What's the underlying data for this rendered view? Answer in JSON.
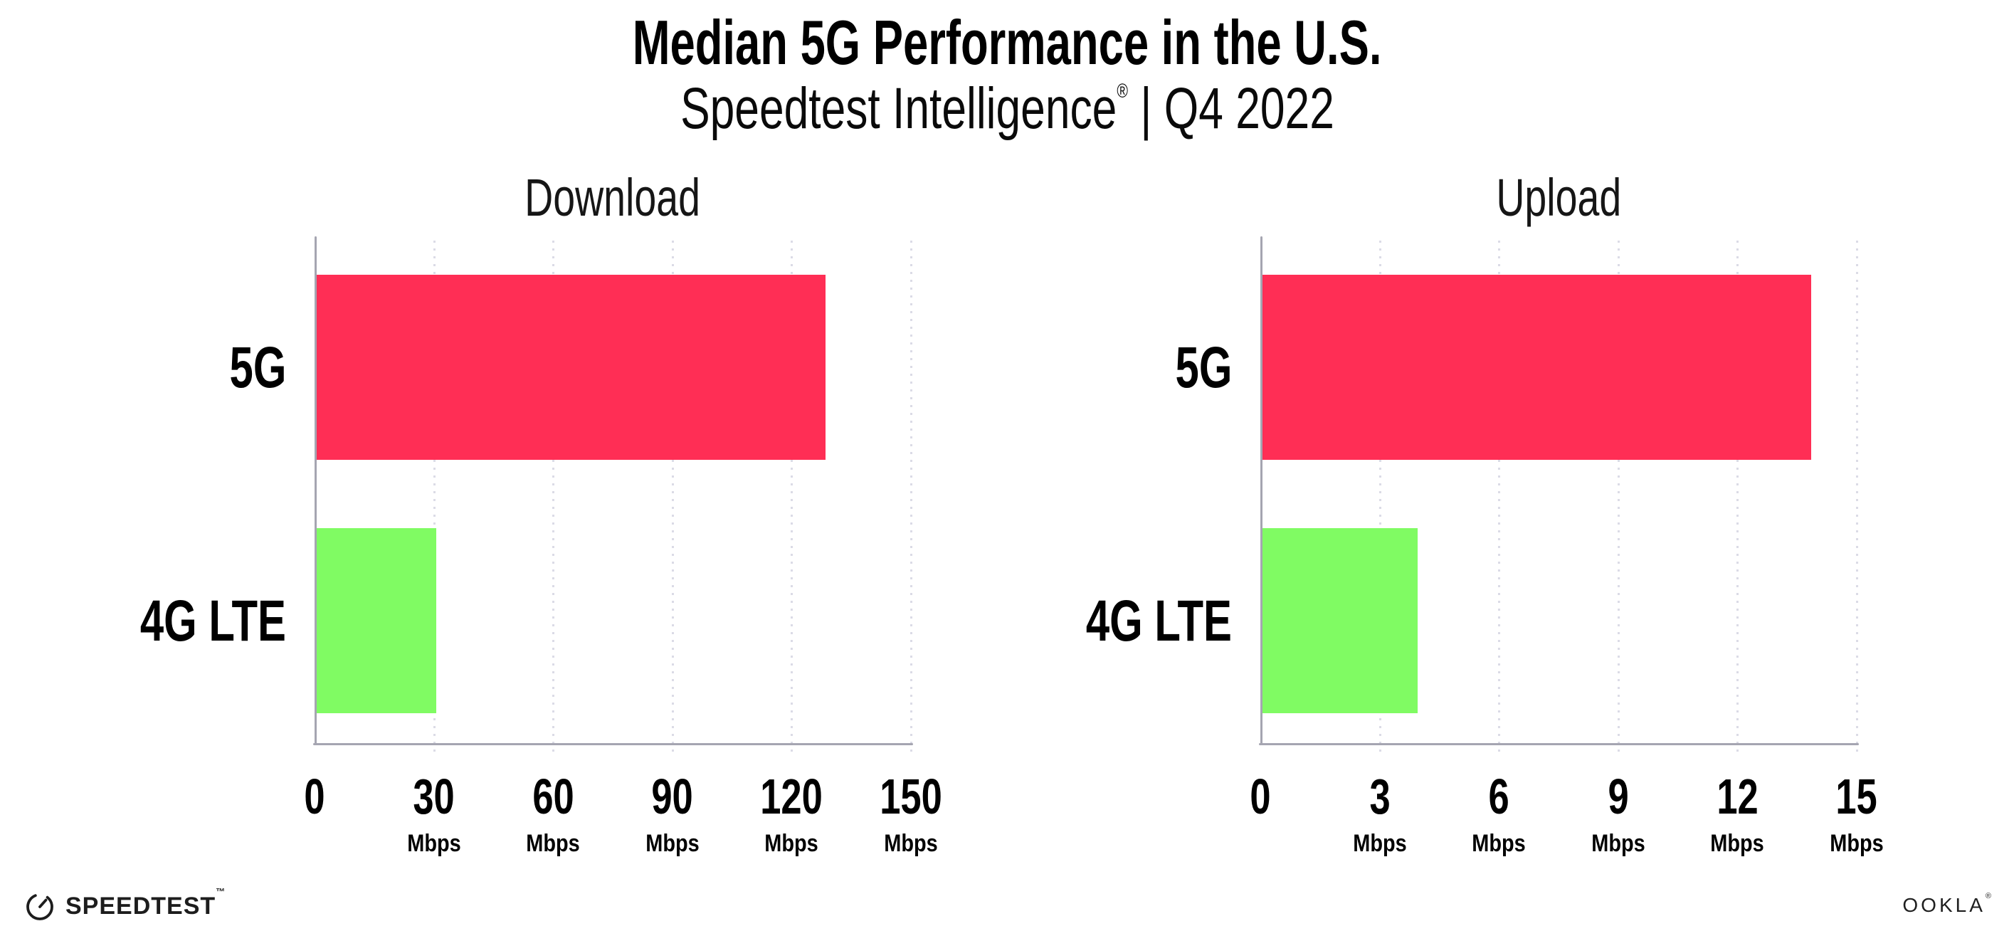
{
  "header": {
    "title": "Median 5G Performance in the U.S.",
    "subtitle_brand": "Speedtest Intelligence",
    "subtitle_reg": "®",
    "subtitle_rest": " | Q4 2022"
  },
  "charts": [
    {
      "title": "Download",
      "categories": [
        "5G",
        "4G LTE"
      ],
      "ticks": [
        {
          "label": "0",
          "unit": ""
        },
        {
          "label": "30",
          "unit": "Mbps"
        },
        {
          "label": "60",
          "unit": "Mbps"
        },
        {
          "label": "90",
          "unit": "Mbps"
        },
        {
          "label": "120",
          "unit": "Mbps"
        },
        {
          "label": "150",
          "unit": "Mbps"
        }
      ]
    },
    {
      "title": "Upload",
      "categories": [
        "5G",
        "4G LTE"
      ],
      "ticks": [
        {
          "label": "0",
          "unit": ""
        },
        {
          "label": "3",
          "unit": "Mbps"
        },
        {
          "label": "6",
          "unit": "Mbps"
        },
        {
          "label": "9",
          "unit": "Mbps"
        },
        {
          "label": "12",
          "unit": "Mbps"
        },
        {
          "label": "15",
          "unit": "Mbps"
        }
      ]
    }
  ],
  "colors": {
    "bar_5g": "#FF2E55",
    "bar_4g_lte": "#80FB63",
    "axis": "#A5A5B1",
    "gridline": "#DBDBE6",
    "text": "#000000"
  },
  "footer": {
    "speedtest_label": "SPEEDTEST",
    "speedtest_tm": "™",
    "ookla_label": "OOKLA",
    "ookla_reg": "®"
  },
  "chart_data": [
    {
      "type": "bar",
      "orientation": "horizontal",
      "title": "Download",
      "categories": [
        "5G",
        "4G LTE"
      ],
      "values": [
        128,
        30
      ],
      "unit": "Mbps",
      "xlim": [
        0,
        150
      ],
      "xticks": [
        0,
        30,
        60,
        90,
        120,
        150
      ],
      "grid": "dotted-vertical",
      "legend": "none",
      "bar_colors": [
        "#FF2E55",
        "#80FB63"
      ]
    },
    {
      "type": "bar",
      "orientation": "horizontal",
      "title": "Upload",
      "categories": [
        "5G",
        "4G LTE"
      ],
      "values": [
        13.8,
        3.9
      ],
      "unit": "Mbps",
      "xlim": [
        0,
        15
      ],
      "xticks": [
        0,
        3,
        6,
        9,
        12,
        15
      ],
      "grid": "dotted-vertical",
      "legend": "none",
      "bar_colors": [
        "#FF2E55",
        "#80FB63"
      ]
    }
  ]
}
